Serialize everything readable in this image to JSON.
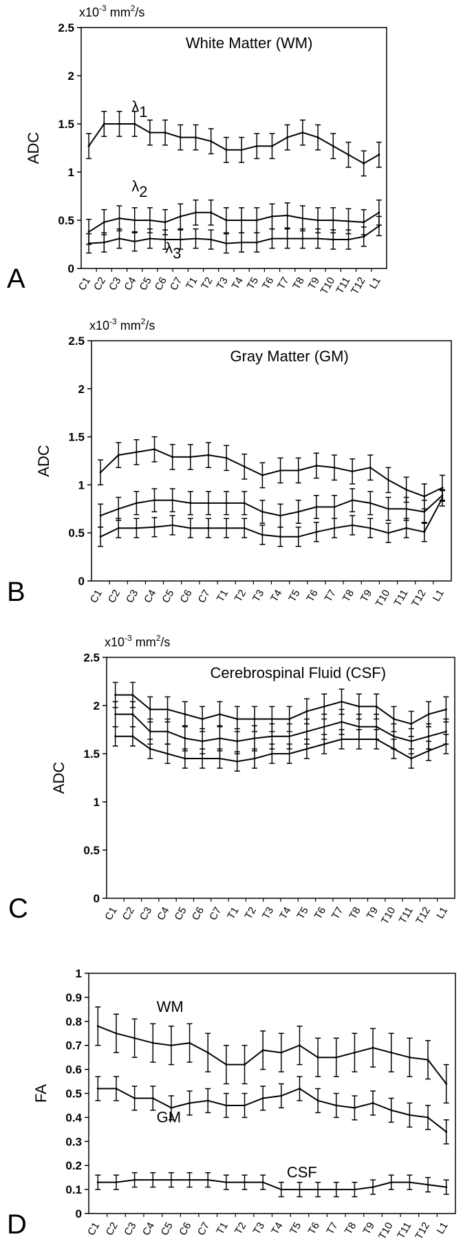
{
  "chart_data": [
    {
      "type": "line",
      "panel_label": "A",
      "title": "White Matter (WM)",
      "unit": {
        "base": "x10",
        "exp": "-3",
        "rest": " mm",
        "exp2": "2",
        "tail": "/s"
      },
      "ylabel": "ADC",
      "ylim": [
        0,
        2.5
      ],
      "yticks": [
        "0",
        "0.5",
        "1",
        "1.5",
        "2",
        "2.5"
      ],
      "categories": [
        "C1",
        "C2",
        "C3",
        "C4",
        "C5",
        "C6",
        "C7",
        "T1",
        "T2",
        "T3",
        "T4",
        "T5",
        "T6",
        "T7",
        "T8",
        "T9",
        "T10",
        "T11",
        "T12",
        "L1"
      ],
      "series": [
        {
          "values": [
            1.27,
            1.5,
            1.5,
            1.5,
            1.41,
            1.41,
            1.36,
            1.36,
            1.32,
            1.23,
            1.23,
            1.27,
            1.27,
            1.36,
            1.41,
            1.36,
            1.27,
            1.18,
            1.09,
            1.18
          ],
          "errors": [
            0.13,
            0.13,
            0.13,
            0.13,
            0.13,
            0.13,
            0.13,
            0.13,
            0.13,
            0.13,
            0.13,
            0.13,
            0.13,
            0.13,
            0.13,
            0.13,
            0.13,
            0.13,
            0.13,
            0.13
          ]
        },
        {
          "values": [
            0.38,
            0.48,
            0.52,
            0.5,
            0.5,
            0.48,
            0.54,
            0.58,
            0.58,
            0.5,
            0.5,
            0.5,
            0.54,
            0.55,
            0.52,
            0.5,
            0.5,
            0.49,
            0.48,
            0.58
          ],
          "errors": [
            0.13,
            0.13,
            0.13,
            0.13,
            0.13,
            0.13,
            0.13,
            0.13,
            0.13,
            0.13,
            0.13,
            0.13,
            0.13,
            0.13,
            0.13,
            0.13,
            0.13,
            0.13,
            0.13,
            0.13
          ]
        },
        {
          "values": [
            0.26,
            0.27,
            0.31,
            0.28,
            0.31,
            0.3,
            0.3,
            0.31,
            0.3,
            0.26,
            0.27,
            0.27,
            0.31,
            0.31,
            0.31,
            0.31,
            0.3,
            0.3,
            0.33,
            0.44
          ],
          "errors": [
            0.1,
            0.1,
            0.1,
            0.1,
            0.1,
            0.1,
            0.1,
            0.1,
            0.1,
            0.1,
            0.1,
            0.1,
            0.1,
            0.1,
            0.1,
            0.1,
            0.1,
            0.1,
            0.1,
            0.1
          ]
        }
      ],
      "annotations": [
        {
          "text": "λ",
          "sub": "1",
          "x": 2.8,
          "y": 1.63
        },
        {
          "text": "λ",
          "sub": "2",
          "x": 2.8,
          "y": 0.8
        },
        {
          "text": "λ",
          "sub": "3",
          "x": 5.0,
          "y": 0.16
        }
      ]
    },
    {
      "type": "line",
      "panel_label": "B",
      "title": "Gray Matter (GM)",
      "unit": {
        "base": "x10",
        "exp": "-3",
        "rest": " mm",
        "exp2": "2",
        "tail": "/s"
      },
      "ylabel": "ADC",
      "ylim": [
        0,
        2.5
      ],
      "yticks": [
        "0",
        "0.5",
        "1",
        "1.5",
        "2",
        "2.5"
      ],
      "categories": [
        "C1",
        "C2",
        "C3",
        "C4",
        "C5",
        "C6",
        "C7",
        "T1",
        "T2",
        "T3",
        "T4",
        "T5",
        "T6",
        "T7",
        "T8",
        "T9",
        "T10",
        "T11",
        "T12",
        "L1"
      ],
      "series": [
        {
          "values": [
            1.13,
            1.31,
            1.34,
            1.37,
            1.29,
            1.29,
            1.31,
            1.28,
            1.19,
            1.1,
            1.15,
            1.15,
            1.2,
            1.18,
            1.14,
            1.18,
            1.05,
            0.95,
            0.88,
            0.97
          ],
          "errors": [
            0.13,
            0.13,
            0.13,
            0.13,
            0.13,
            0.13,
            0.13,
            0.13,
            0.13,
            0.13,
            0.13,
            0.13,
            0.13,
            0.13,
            0.13,
            0.13,
            0.13,
            0.13,
            0.13,
            0.13
          ]
        },
        {
          "values": [
            0.68,
            0.75,
            0.81,
            0.84,
            0.84,
            0.81,
            0.81,
            0.81,
            0.81,
            0.72,
            0.68,
            0.72,
            0.77,
            0.77,
            0.84,
            0.81,
            0.75,
            0.75,
            0.72,
            0.89
          ],
          "errors": [
            0.12,
            0.12,
            0.12,
            0.12,
            0.12,
            0.12,
            0.12,
            0.12,
            0.12,
            0.12,
            0.12,
            0.12,
            0.12,
            0.12,
            0.12,
            0.12,
            0.12,
            0.12,
            0.12,
            0.06
          ]
        },
        {
          "values": [
            0.46,
            0.55,
            0.55,
            0.56,
            0.58,
            0.55,
            0.55,
            0.55,
            0.55,
            0.48,
            0.46,
            0.46,
            0.51,
            0.55,
            0.58,
            0.55,
            0.5,
            0.55,
            0.51,
            0.86
          ],
          "errors": [
            0.1,
            0.1,
            0.1,
            0.1,
            0.1,
            0.1,
            0.1,
            0.1,
            0.1,
            0.1,
            0.1,
            0.1,
            0.1,
            0.1,
            0.1,
            0.1,
            0.1,
            0.1,
            0.1,
            0.08
          ]
        }
      ]
    },
    {
      "type": "line",
      "panel_label": "C",
      "title": "Cerebrospinal Fluid (CSF)",
      "unit": {
        "base": "x10",
        "exp": "-3",
        "rest": " mm",
        "exp2": "2",
        "tail": "/s"
      },
      "ylabel": "ADC",
      "ylim": [
        0,
        2.5
      ],
      "yticks": [
        "0",
        "0.5",
        "1",
        "1.5",
        "2",
        "2.5"
      ],
      "categories": [
        "C1",
        "C2",
        "C3",
        "C4",
        "C5",
        "C6",
        "C7",
        "T1",
        "T2",
        "T3",
        "T4",
        "T5",
        "T6",
        "T7",
        "T8",
        "T9",
        "T10",
        "T11",
        "T12",
        "L1"
      ],
      "series": [
        {
          "values": [
            2.11,
            2.11,
            1.96,
            1.96,
            1.91,
            1.86,
            1.91,
            1.86,
            1.86,
            1.86,
            1.86,
            1.94,
            1.99,
            2.04,
            1.99,
            1.99,
            1.86,
            1.81,
            1.91,
            1.96
          ],
          "errors": [
            0.13,
            0.13,
            0.13,
            0.13,
            0.13,
            0.13,
            0.13,
            0.13,
            0.13,
            0.13,
            0.13,
            0.13,
            0.13,
            0.13,
            0.13,
            0.13,
            0.13,
            0.13,
            0.13,
            0.13
          ]
        },
        {
          "values": [
            1.91,
            1.91,
            1.73,
            1.73,
            1.66,
            1.63,
            1.66,
            1.63,
            1.66,
            1.68,
            1.68,
            1.73,
            1.78,
            1.83,
            1.78,
            1.78,
            1.68,
            1.63,
            1.68,
            1.73
          ],
          "errors": [
            0.13,
            0.13,
            0.13,
            0.13,
            0.13,
            0.13,
            0.13,
            0.13,
            0.13,
            0.13,
            0.13,
            0.13,
            0.13,
            0.13,
            0.13,
            0.13,
            0.13,
            0.13,
            0.13,
            0.13
          ]
        },
        {
          "values": [
            1.68,
            1.68,
            1.55,
            1.5,
            1.45,
            1.45,
            1.45,
            1.42,
            1.45,
            1.5,
            1.5,
            1.55,
            1.6,
            1.65,
            1.65,
            1.65,
            1.55,
            1.45,
            1.53,
            1.6
          ],
          "errors": [
            0.1,
            0.1,
            0.1,
            0.1,
            0.1,
            0.1,
            0.1,
            0.1,
            0.1,
            0.1,
            0.1,
            0.1,
            0.1,
            0.1,
            0.1,
            0.1,
            0.1,
            0.1,
            0.1,
            0.1
          ]
        }
      ]
    },
    {
      "type": "line",
      "panel_label": "D",
      "title": "",
      "ylabel": "FA",
      "ylim": [
        0,
        1
      ],
      "yticks": [
        "0",
        "0.1",
        "0.2",
        "0.3",
        "0.4",
        "0.5",
        "0.6",
        "0.7",
        "0.8",
        "0.9",
        "1"
      ],
      "categories": [
        "C1",
        "C2",
        "C3",
        "C4",
        "C5",
        "C6",
        "C7",
        "T1",
        "T2",
        "T3",
        "T4",
        "T5",
        "T6",
        "T7",
        "T8",
        "T9",
        "T10",
        "T11",
        "T12",
        "L1"
      ],
      "series": [
        {
          "name": "WM",
          "values": [
            0.78,
            0.75,
            0.73,
            0.71,
            0.7,
            0.71,
            0.67,
            0.62,
            0.62,
            0.68,
            0.67,
            0.7,
            0.65,
            0.65,
            0.67,
            0.69,
            0.67,
            0.65,
            0.64,
            0.54
          ],
          "errors": [
            0.08,
            0.08,
            0.08,
            0.08,
            0.08,
            0.08,
            0.08,
            0.08,
            0.08,
            0.08,
            0.08,
            0.08,
            0.08,
            0.08,
            0.08,
            0.08,
            0.08,
            0.08,
            0.08,
            0.08
          ]
        },
        {
          "name": "GM",
          "values": [
            0.52,
            0.52,
            0.48,
            0.48,
            0.44,
            0.46,
            0.47,
            0.45,
            0.45,
            0.48,
            0.49,
            0.52,
            0.47,
            0.45,
            0.44,
            0.46,
            0.43,
            0.41,
            0.4,
            0.34
          ],
          "errors": [
            0.05,
            0.05,
            0.05,
            0.05,
            0.05,
            0.05,
            0.05,
            0.05,
            0.05,
            0.05,
            0.05,
            0.05,
            0.05,
            0.05,
            0.05,
            0.05,
            0.05,
            0.05,
            0.05,
            0.05
          ]
        },
        {
          "name": "CSF",
          "values": [
            0.13,
            0.13,
            0.14,
            0.14,
            0.14,
            0.14,
            0.14,
            0.13,
            0.13,
            0.13,
            0.1,
            0.1,
            0.1,
            0.1,
            0.1,
            0.11,
            0.13,
            0.13,
            0.12,
            0.11
          ],
          "errors": [
            0.03,
            0.03,
            0.03,
            0.03,
            0.03,
            0.03,
            0.03,
            0.03,
            0.03,
            0.03,
            0.03,
            0.03,
            0.03,
            0.03,
            0.03,
            0.03,
            0.03,
            0.03,
            0.03,
            0.03
          ]
        }
      ],
      "annotations": [
        {
          "text": "WM",
          "x": 3.2,
          "y": 0.84
        },
        {
          "text": "GM",
          "x": 3.2,
          "y": 0.38
        },
        {
          "text": "CSF",
          "x": 10.3,
          "y": 0.15
        }
      ]
    }
  ]
}
